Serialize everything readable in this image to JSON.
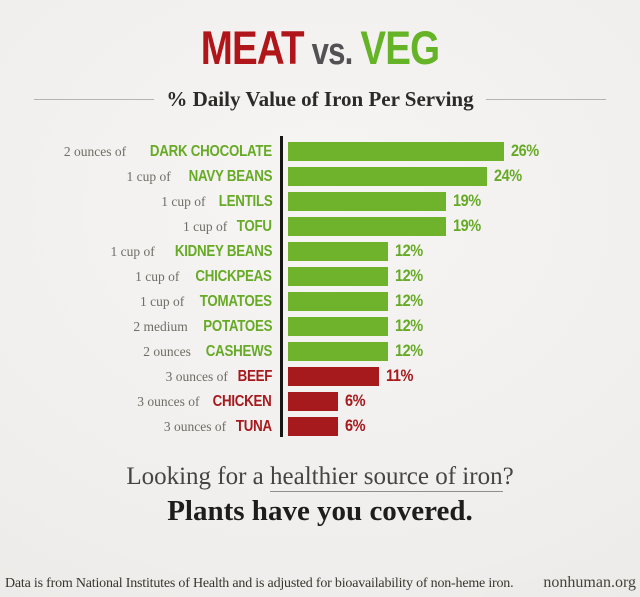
{
  "title": {
    "meat": "MEAT",
    "vs": "vs.",
    "veg": "VEG"
  },
  "subtitle": "% Daily Value of Iron Per Serving",
  "chart_data": {
    "type": "bar",
    "orientation": "horizontal",
    "unit": "%",
    "title": "% Daily Value of Iron Per Serving",
    "value_range": [
      0,
      26
    ],
    "grid": false,
    "legend": "none",
    "colors": {
      "veg_bar": "#6fb32c",
      "veg_text": "#67aa26",
      "meat_bar": "#a6191d",
      "meat_text": "#a6191d",
      "title_meat": "#b01519",
      "title_vs": "#525254",
      "title_veg": "#65b427",
      "axis": "#161616"
    },
    "items": [
      {
        "serving": "2 ounces of",
        "name": "DARK CHOCOLATE",
        "value": 26,
        "group": "veg"
      },
      {
        "serving": "1 cup of",
        "name": "NAVY BEANS",
        "value": 24,
        "group": "veg"
      },
      {
        "serving": "1 cup of",
        "name": "LENTILS",
        "value": 19,
        "group": "veg"
      },
      {
        "serving": "1 cup of",
        "name": "TOFU",
        "value": 19,
        "group": "veg"
      },
      {
        "serving": "1 cup of",
        "name": "KIDNEY BEANS",
        "value": 12,
        "group": "veg"
      },
      {
        "serving": "1 cup of",
        "name": "CHICKPEAS",
        "value": 12,
        "group": "veg"
      },
      {
        "serving": "1 cup of",
        "name": "TOMATOES",
        "value": 12,
        "group": "veg"
      },
      {
        "serving": "2 medium",
        "name": "POTATOES",
        "value": 12,
        "group": "veg"
      },
      {
        "serving": "2 ounces",
        "name": "CASHEWS",
        "value": 12,
        "group": "veg"
      },
      {
        "serving": "3 ounces of",
        "name": "BEEF",
        "value": 11,
        "group": "meat"
      },
      {
        "serving": "3 ounces of",
        "name": "CHICKEN",
        "value": 6,
        "group": "meat"
      },
      {
        "serving": "3 ounces of",
        "name": "TUNA",
        "value": 6,
        "group": "meat"
      }
    ]
  },
  "tagline": {
    "prefix": "Looking for a ",
    "underlined": "healthier source of iron",
    "suffix": "?",
    "line2": "Plants have you covered."
  },
  "footer": {
    "source": "Data is from National Institutes of Health and is adjusted for bioavailability of non-heme iron.",
    "site": "nonhuman.org"
  }
}
